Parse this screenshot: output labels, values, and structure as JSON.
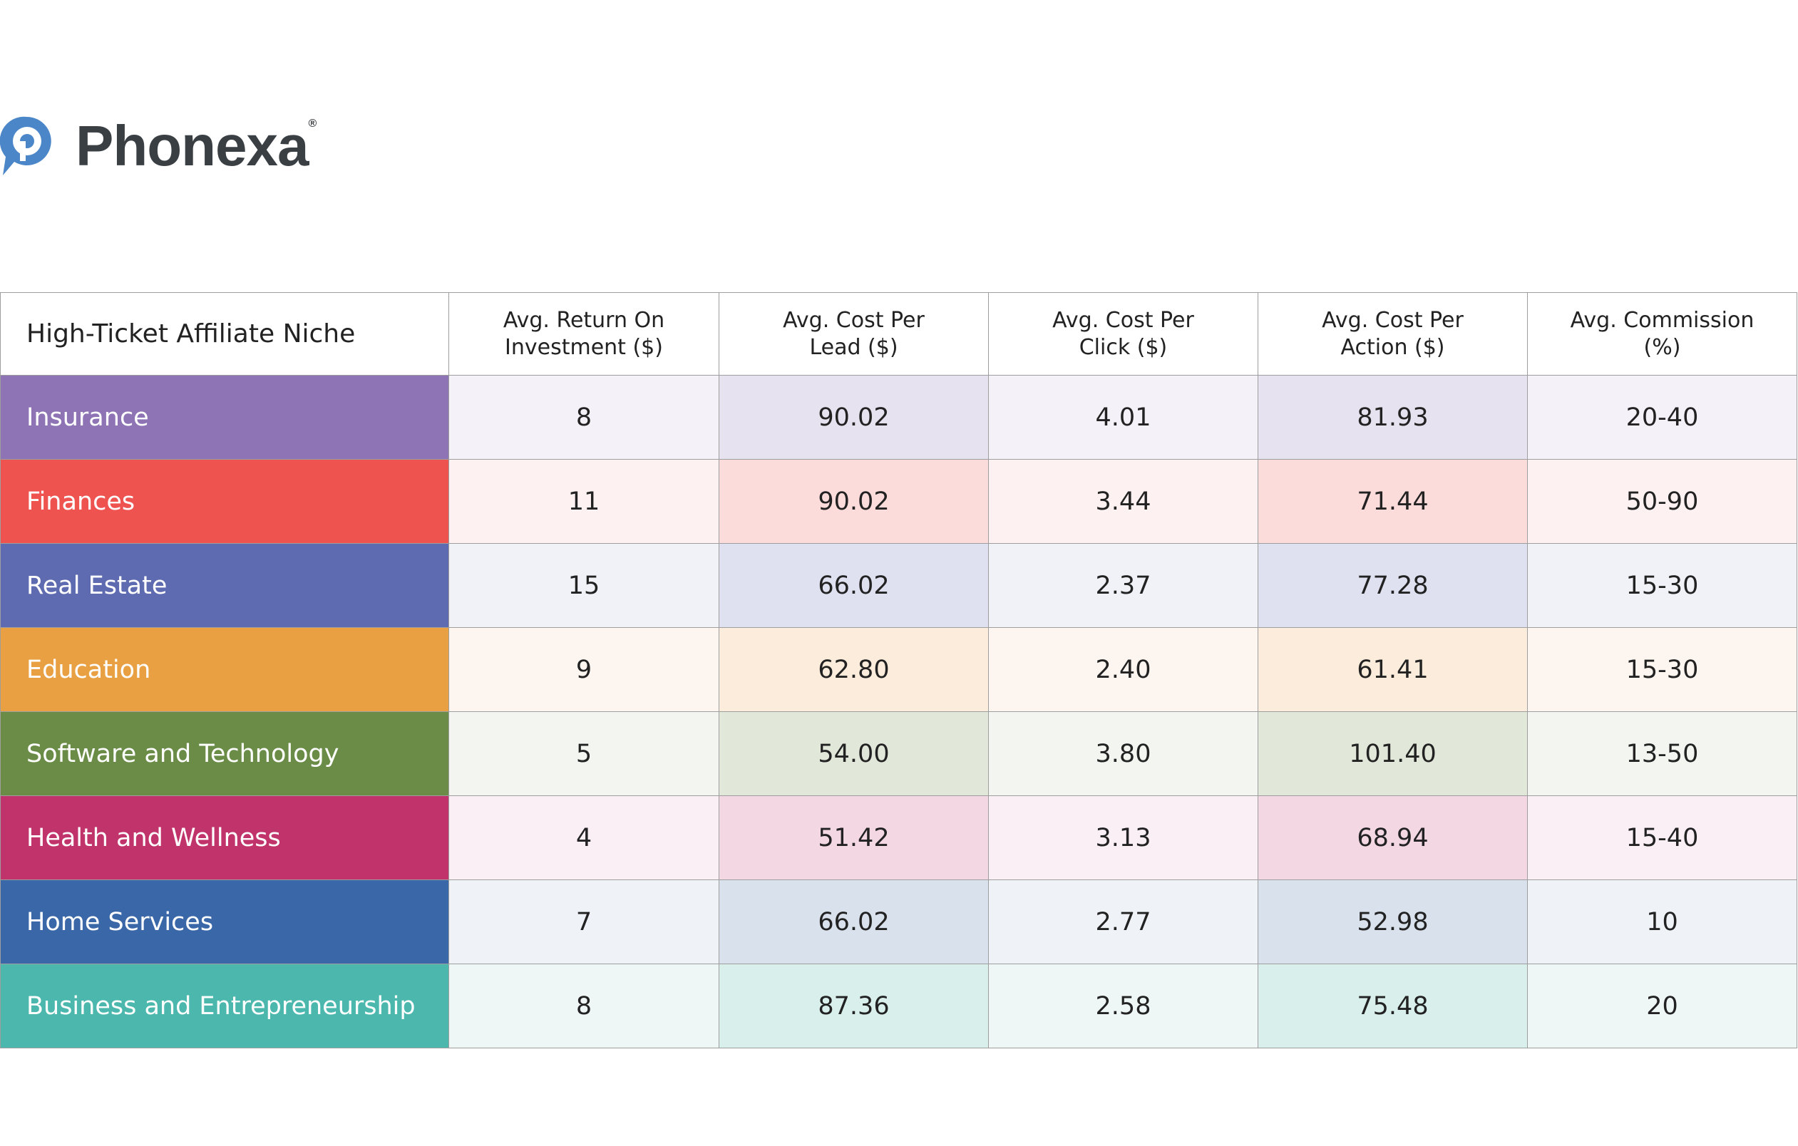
{
  "logo": {
    "text": "Phonexa",
    "mark": "®"
  },
  "table": {
    "header": [
      "High-Ticket Affiliate Niche",
      "Avg. Return On Investment ($)",
      "Avg. Cost Per Lead ($)",
      "Avg. Cost Per Click ($)",
      "Avg. Cost Per Action ($)",
      "Avg. Commission (%)"
    ],
    "rows": [
      [
        "Insurance",
        "8",
        "90.02",
        "4.01",
        "81.93",
        "20-40"
      ],
      [
        "Finances",
        "11",
        "90.02",
        "3.44",
        "71.44",
        "50-90"
      ],
      [
        "Real Estate",
        "15",
        "66.02",
        "2.37",
        "77.28",
        "15-30"
      ],
      [
        "Education",
        "9",
        "62.80",
        "2.40",
        "61.41",
        "15-30"
      ],
      [
        "Software and Technology",
        "5",
        "54.00",
        "3.80",
        "101.40",
        "13-50"
      ],
      [
        "Health and Wellness",
        "4",
        "51.42",
        "3.13",
        "68.94",
        "15-40"
      ],
      [
        "Home Services",
        "7",
        "66.02",
        "2.77",
        "52.98",
        "10"
      ],
      [
        "Business and Entrepreneurship",
        "8",
        "87.36",
        "2.58",
        "75.48",
        "20"
      ]
    ]
  }
}
